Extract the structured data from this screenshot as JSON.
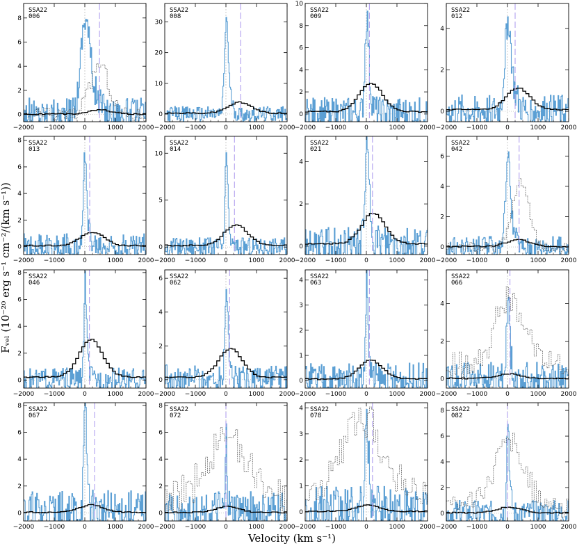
{
  "figure": {
    "xlabel": "Velocity (km s⁻¹)",
    "ylabel": "Fᵥₑₗ (10⁻²⁰ erg s⁻¹ cm⁻²/(km s⁻¹))",
    "colors": {
      "lya": "#5b9fd4",
      "secondary": "#555555",
      "dashed_marker": "#b8a8f0",
      "systemic": "#aaaaaa"
    }
  },
  "chart_data": [
    {
      "type": "line",
      "label": "SSA22\n006",
      "xlim": [
        -2000,
        2000
      ],
      "ylim": [
        -0.6,
        9.2
      ],
      "yticks": [
        0,
        2,
        4,
        6,
        8
      ],
      "xticks": [
        -2000,
        -1000,
        0,
        1000,
        2000
      ],
      "peak": 8.9,
      "peak_v": 0,
      "width": 150,
      "secondary_peak": 4.2,
      "secondary_v": 450,
      "secondary_width": 300,
      "broad_peak": 0.35,
      "broad_v": 450,
      "noise": 1.4,
      "marker_v": 480
    },
    {
      "type": "line",
      "label": "SSA22\n008",
      "xlim": [
        -2000,
        2000
      ],
      "ylim": [
        -2.5,
        36
      ],
      "yticks": [
        0,
        10,
        20,
        30
      ],
      "xticks": [
        -2000,
        -1000,
        0,
        1000,
        2000
      ],
      "peak": 34,
      "peak_v": 0,
      "width": 60,
      "secondary_peak": 0,
      "secondary_v": 0,
      "secondary_width": 0,
      "broad_peak": 3.5,
      "broad_v": 400,
      "noise": 2.5,
      "marker_v": 480
    },
    {
      "type": "line",
      "label": "SSA22\n009",
      "xlim": [
        -2000,
        2000
      ],
      "ylim": [
        -0.7,
        10
      ],
      "yticks": [
        0,
        2,
        4,
        6,
        8,
        10
      ],
      "xticks": [
        -2000,
        -1000,
        0,
        1000,
        2000
      ],
      "peak": 9.6,
      "peak_v": 0,
      "width": 60,
      "secondary_peak": 0,
      "secondary_v": 0,
      "secondary_width": 0,
      "broad_peak": 2.6,
      "broad_v": 100,
      "noise": 1.5,
      "marker_v": 100
    },
    {
      "type": "line",
      "label": "SSA22\n012",
      "xlim": [
        -2000,
        2000
      ],
      "ylim": [
        -0.5,
        5.2
      ],
      "yticks": [
        0,
        2,
        4
      ],
      "xticks": [
        -2000,
        -1000,
        0,
        1000,
        2000
      ],
      "peak": 4.9,
      "peak_v": 0,
      "width": 100,
      "secondary_peak": 0,
      "secondary_v": 0,
      "secondary_width": 0,
      "broad_peak": 1.05,
      "broad_v": 300,
      "noise": 0.8,
      "marker_v": 250
    },
    {
      "type": "line",
      "label": "SSA22\n013",
      "xlim": [
        -2000,
        2000
      ],
      "ylim": [
        -0.6,
        8.3
      ],
      "yticks": [
        0,
        2,
        4,
        6,
        8
      ],
      "xticks": [
        -2000,
        -1000,
        0,
        1000,
        2000
      ],
      "peak": 8,
      "peak_v": 0,
      "width": 50,
      "secondary_peak": 0,
      "secondary_v": 0,
      "secondary_width": 0,
      "broad_peak": 1.0,
      "broad_v": 200,
      "noise": 1.0,
      "marker_v": 160
    },
    {
      "type": "line",
      "label": "SSA22\n014",
      "xlim": [
        -2000,
        2000
      ],
      "ylim": [
        -0.8,
        11.8
      ],
      "yticks": [
        0,
        5,
        10
      ],
      "xticks": [
        -2000,
        -1000,
        0,
        1000,
        2000
      ],
      "peak": 11,
      "peak_v": 0,
      "width": 40,
      "secondary_peak": 0,
      "secondary_v": 0,
      "secondary_width": 0,
      "broad_peak": 2.2,
      "broad_v": 280,
      "noise": 1.0,
      "marker_v": 280
    },
    {
      "type": "line",
      "label": "SSA22\n021",
      "xlim": [
        -2000,
        2000
      ],
      "ylim": [
        -0.4,
        5.2
      ],
      "yticks": [
        0,
        2,
        4
      ],
      "xticks": [
        -2000,
        -1000,
        0,
        1000,
        2000
      ],
      "peak": 4.9,
      "peak_v": 0,
      "width": 70,
      "secondary_peak": 0,
      "secondary_v": 0,
      "secondary_width": 0,
      "broad_peak": 1.45,
      "broad_v": 180,
      "noise": 0.9,
      "marker_v": 200
    },
    {
      "type": "line",
      "label": "SSA22\n042",
      "xlim": [
        -2000,
        2000
      ],
      "ylim": [
        -0.5,
        7.3
      ],
      "yticks": [
        0,
        2,
        4,
        6
      ],
      "xticks": [
        -2000,
        -1000,
        0,
        1000,
        2000
      ],
      "peak": 6.5,
      "peak_v": 0,
      "width": 80,
      "secondary_peak": 4.3,
      "secondary_v": 400,
      "secondary_width": 260,
      "broad_peak": 0.45,
      "broad_v": 300,
      "noise": 0.7,
      "marker_v": 380
    },
    {
      "type": "line",
      "label": "SSA22\n046",
      "xlim": [
        -2000,
        2000
      ],
      "ylim": [
        -0.6,
        8.2
      ],
      "yticks": [
        0,
        2,
        4,
        6,
        8
      ],
      "xticks": [
        -2000,
        -1000,
        0,
        1000,
        2000
      ],
      "peak": 8,
      "peak_v": 0,
      "width": 40,
      "secondary_peak": 0,
      "secondary_v": 0,
      "secondary_width": 0,
      "broad_peak": 2.8,
      "broad_v": 150,
      "noise": 0.9,
      "marker_v": 150
    },
    {
      "type": "line",
      "label": "SSA22\n062",
      "xlim": [
        -2000,
        2000
      ],
      "ylim": [
        -0.5,
        6.5
      ],
      "yticks": [
        0,
        2,
        4,
        6
      ],
      "xticks": [
        -2000,
        -1000,
        0,
        1000,
        2000
      ],
      "peak": 6,
      "peak_v": 0,
      "width": 50,
      "secondary_peak": 0,
      "secondary_v": 0,
      "secondary_width": 0,
      "broad_peak": 1.7,
      "broad_v": 100,
      "noise": 0.9,
      "marker_v": 120
    },
    {
      "type": "line",
      "label": "SSA22\n063",
      "xlim": [
        -2000,
        2000
      ],
      "ylim": [
        -0.3,
        4.4
      ],
      "yticks": [
        0,
        1,
        2,
        3,
        4
      ],
      "xticks": [
        -2000,
        -1000,
        0,
        1000,
        2000
      ],
      "peak": 4.2,
      "peak_v": 0,
      "width": 40,
      "secondary_peak": 0,
      "secondary_v": 0,
      "secondary_width": 0,
      "broad_peak": 0.75,
      "broad_v": 100,
      "noise": 0.7,
      "marker_v": 100
    },
    {
      "type": "line",
      "label": "SSA22\n066",
      "xlim": [
        -2000,
        2000
      ],
      "ylim": [
        -0.5,
        5.8
      ],
      "yticks": [
        0,
        2,
        4
      ],
      "xticks": [
        -2000,
        -1000,
        0,
        1000,
        2000
      ],
      "peak": 4.8,
      "peak_v": 0,
      "width": 50,
      "secondary_peak": 3.6,
      "secondary_v": 50,
      "secondary_width": 500,
      "broad_peak": 0.25,
      "broad_v": 0,
      "noise": 0.9,
      "marker_v": 80
    },
    {
      "type": "line",
      "label": "SSA22\n067",
      "xlim": [
        -2000,
        2000
      ],
      "ylim": [
        -0.6,
        8.2
      ],
      "yticks": [
        0,
        2,
        4,
        6,
        8
      ],
      "xticks": [
        -2000,
        -1000,
        0,
        1000,
        2000
      ],
      "peak": 7.8,
      "peak_v": 0,
      "width": 50,
      "secondary_peak": 0,
      "secondary_v": 0,
      "secondary_width": 0,
      "broad_peak": 0.55,
      "broad_v": 150,
      "noise": 1.7,
      "marker_v": 320
    },
    {
      "type": "line",
      "label": "SSA22\n072",
      "xlim": [
        -2000,
        2000
      ],
      "ylim": [
        -0.6,
        8.2
      ],
      "yticks": [
        0,
        2,
        4,
        6,
        8
      ],
      "xticks": [
        -2000,
        -1000,
        0,
        1000,
        2000
      ],
      "peak": 7.8,
      "peak_v": 0,
      "width": 20,
      "secondary_peak": 4.8,
      "secondary_v": 0,
      "secondary_width": 700,
      "broad_peak": 0.45,
      "broad_v": 0,
      "noise": 1.6,
      "marker_v": 0
    },
    {
      "type": "line",
      "label": "SSA22\n078",
      "xlim": [
        -2000,
        2000
      ],
      "ylim": [
        -0.35,
        4.2
      ],
      "yticks": [
        0,
        1,
        2,
        3,
        4
      ],
      "xticks": [
        -2000,
        -1000,
        0,
        1000,
        2000
      ],
      "peak": 3.6,
      "peak_v": 0,
      "width": 60,
      "secondary_peak": 3.0,
      "secondary_v": -200,
      "secondary_width": 700,
      "broad_peak": 0.25,
      "broad_v": 0,
      "noise": 1.0,
      "marker_v": 200
    },
    {
      "type": "line",
      "label": "SSA22\n082",
      "xlim": [
        -2000,
        2000
      ],
      "ylim": [
        -0.6,
        8.6
      ],
      "yticks": [
        0,
        2,
        4,
        6,
        8
      ],
      "xticks": [
        -2000,
        -1000,
        0,
        1000,
        2000
      ],
      "peak": 8,
      "peak_v": 0,
      "width": 40,
      "secondary_peak": 4.8,
      "secondary_v": 0,
      "secondary_width": 450,
      "broad_peak": 0.45,
      "broad_v": 0,
      "noise": 1.0,
      "marker_v": 0
    }
  ]
}
